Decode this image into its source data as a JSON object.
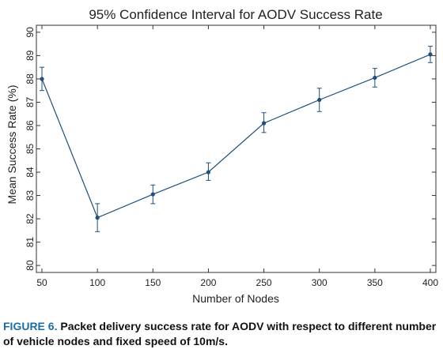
{
  "chart_data": {
    "type": "line",
    "title": "95% Confidence Interval for AODV Success Rate",
    "xlabel": "Number of Nodes",
    "ylabel": "Mean Success Rate (%)",
    "x": [
      50,
      100,
      150,
      200,
      250,
      300,
      350,
      400
    ],
    "xticks": [
      "50",
      "100",
      "150",
      "200",
      "250",
      "300",
      "350",
      "400"
    ],
    "xlim": [
      45,
      405
    ],
    "ylim": [
      79.7,
      90.3
    ],
    "yticks": [
      "80",
      "81",
      "82",
      "83",
      "84",
      "85",
      "86",
      "87",
      "88",
      "89",
      "90"
    ],
    "grid": false,
    "series": [
      {
        "values": [
          88.0,
          82.05,
          83.05,
          84.0,
          86.1,
          87.1,
          88.05,
          89.05
        ],
        "ci_low": [
          87.5,
          81.45,
          82.65,
          83.65,
          85.7,
          86.6,
          87.65,
          88.7
        ],
        "ci_high": [
          88.5,
          82.65,
          83.45,
          84.4,
          86.55,
          87.6,
          88.45,
          89.4
        ],
        "color": "#1f4e79"
      }
    ]
  },
  "caption": {
    "label": "FIGURE 6.",
    "text": "Packet delivery success rate for AODV with respect to different number of vehicle nodes and fixed speed of 10m/s."
  }
}
